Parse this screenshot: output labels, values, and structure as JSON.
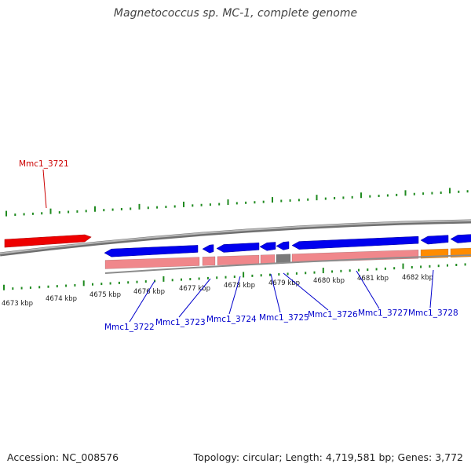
{
  "title": "Magnetococcus sp. MC-1, complete genome",
  "footer": {
    "accession": "Accession: NC_008576",
    "topology": "Topology: circular; Length: 4,719,581 bp; Genes: 3,772"
  },
  "colors": {
    "backbone": "#8a8a8a",
    "forward_gene": "#ee0000",
    "reverse_gene": "#0000ee",
    "cds": "#f0878b",
    "rna": "#ff8c00",
    "pseudo": "#7a7a7a",
    "tick": "#1f8a1f",
    "forward_label": "#cc0000",
    "reverse_label": "#0000cc"
  },
  "scale_labels": [
    "4673 kbp",
    "4674 kbp",
    "4675 kbp",
    "4676 kbp",
    "4677 kbp",
    "4678 kbp",
    "4679 kbp",
    "4680 kbp",
    "4681 kbp",
    "4682 kbp"
  ],
  "genes": [
    {
      "name": "Mmc1_3721",
      "strand": "forward"
    },
    {
      "name": "Mmc1_3722",
      "strand": "reverse"
    },
    {
      "name": "Mmc1_3723",
      "strand": "reverse"
    },
    {
      "name": "Mmc1_3724",
      "strand": "reverse"
    },
    {
      "name": "Mmc1_3725",
      "strand": "reverse"
    },
    {
      "name": "Mmc1_3726",
      "strand": "reverse"
    },
    {
      "name": "Mmc1_3727",
      "strand": "reverse"
    },
    {
      "name": "Mmc1_3728",
      "strand": "reverse"
    }
  ]
}
